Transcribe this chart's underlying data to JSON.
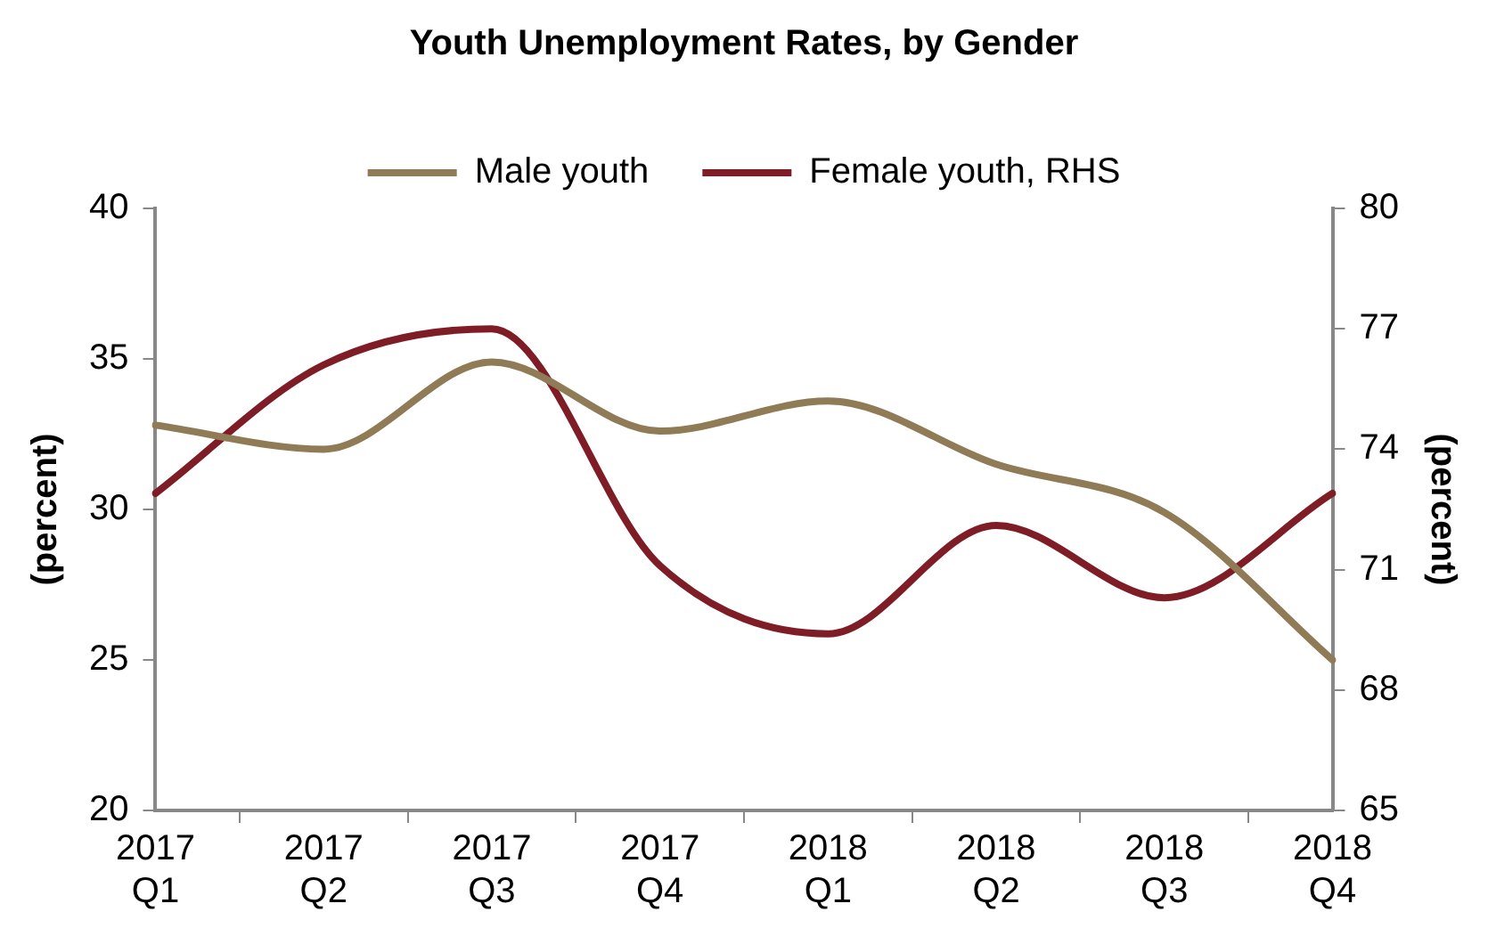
{
  "chart_data": {
    "type": "line",
    "title": "Youth Unemployment Rates, by Gender",
    "categories": [
      "2017 Q1",
      "2017 Q2",
      "2017 Q3",
      "2017 Q4",
      "2018 Q1",
      "2018 Q2",
      "2018 Q3",
      "2018 Q4"
    ],
    "series": [
      {
        "name": "Male youth",
        "color": "#8f7b55",
        "values": [
          32.8,
          32.0,
          34.9,
          32.6,
          33.6,
          31.5,
          29.9,
          25.0
        ]
      },
      {
        "name": "Female youth, RHS",
        "color": "#7f1d27",
        "axis": "y2",
        "values": [
          72.9,
          76.1,
          77.0,
          71.1,
          69.4,
          72.1,
          70.3,
          72.9
        ]
      }
    ],
    "ylabel": "(percent)",
    "y2label": "(percent)",
    "ylim": [
      20,
      40
    ],
    "yticks": [
      20,
      25,
      30,
      35,
      40
    ],
    "y2lim": [
      65,
      80
    ],
    "y2ticks": [
      65,
      68,
      71,
      74,
      77,
      80
    ],
    "grid": false,
    "legend": "top",
    "marker": "none",
    "line_style": "solid"
  }
}
